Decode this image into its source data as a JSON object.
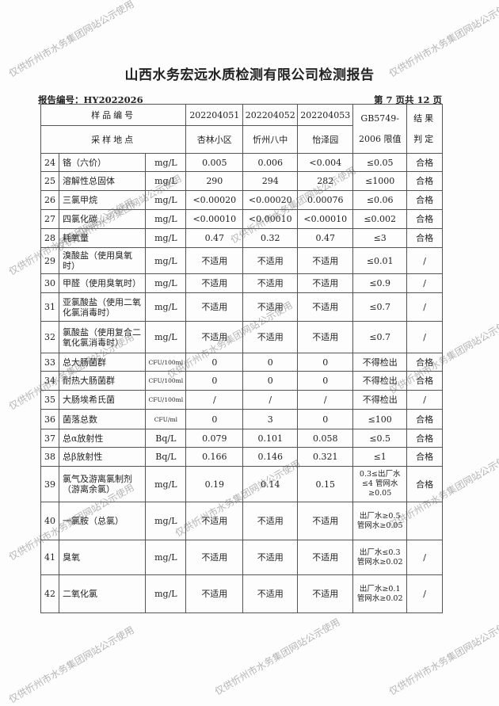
{
  "title": "山西水务宏远水质检测有限公司检测报告",
  "report_no": "报告编号：HY2022026",
  "page_info": "第 7 页共 12 页",
  "watermark": "仅供忻州市水务集团网站公示使用",
  "header": {
    "sample_id_label": "样品编号",
    "location_label": "采样地点",
    "samples": [
      "202204051",
      "202204052",
      "202204053"
    ],
    "locations": [
      "杏林小区",
      "忻州八中",
      "怡泽园"
    ],
    "limit_label": "GB5749-2006 限值",
    "result_label": "结果判定"
  },
  "rows": [
    {
      "no": "24",
      "name": "铬（六价）",
      "unit": "mg/L",
      "v": [
        "0.005",
        "0.006",
        "<0.004"
      ],
      "limit": "≤0.05",
      "result": "合格"
    },
    {
      "no": "25",
      "name": "溶解性总固体",
      "unit": "mg/L",
      "v": [
        "290",
        "294",
        "282"
      ],
      "limit": "≤1000",
      "result": "合格"
    },
    {
      "no": "26",
      "name": "三氯甲烷",
      "unit": "mg/L",
      "v": [
        "<0.00020",
        "<0.00020",
        "0.00076"
      ],
      "limit": "≤0.06",
      "result": "合格"
    },
    {
      "no": "27",
      "name": "四氯化碳",
      "unit": "mg/L",
      "v": [
        "<0.00010",
        "<0.00010",
        "<0.00010"
      ],
      "limit": "≤0.002",
      "result": "合格"
    },
    {
      "no": "28",
      "name": "耗氧量",
      "unit": "mg/L",
      "v": [
        "0.47",
        "0.32",
        "0.47"
      ],
      "limit": "≤3",
      "result": "合格"
    },
    {
      "no": "29",
      "name": "溴酸盐（使用臭氧时）",
      "unit": "mg/L",
      "v": [
        "不适用",
        "不适用",
        "不适用"
      ],
      "limit": "≤0.01",
      "result": "/"
    },
    {
      "no": "30",
      "name": "甲醛（使用臭氧时）",
      "unit": "mg/L",
      "v": [
        "不适用",
        "不适用",
        "不适用"
      ],
      "limit": "≤0.9",
      "result": "/"
    },
    {
      "no": "31",
      "name": "亚氯酸盐（使用二氧化氯消毒时）",
      "unit": "mg/L",
      "v": [
        "不适用",
        "不适用",
        "不适用"
      ],
      "limit": "≤0.7",
      "result": "/"
    },
    {
      "no": "32",
      "name": "氯酸盐（使用复合二氧化氯消毒时）",
      "unit": "mg/L",
      "v": [
        "不适用",
        "不适用",
        "不适用"
      ],
      "limit": "≤0.7",
      "result": "/"
    },
    {
      "no": "33",
      "name": "总大肠菌群",
      "unit": "CFU/100ml",
      "v": [
        "0",
        "0",
        "0"
      ],
      "limit": "不得检出",
      "result": "合格"
    },
    {
      "no": "34",
      "name": "耐热大肠菌群",
      "unit": "CFU/100ml",
      "v": [
        "0",
        "0",
        "0"
      ],
      "limit": "不得检出",
      "result": "合格"
    },
    {
      "no": "35",
      "name": "大肠埃希氏菌",
      "unit": "CFU/100ml",
      "v": [
        "/",
        "/",
        "/"
      ],
      "limit": "不得检出",
      "result": "/"
    },
    {
      "no": "36",
      "name": "菌落总数",
      "unit": "CFU/ml",
      "v": [
        "0",
        "3",
        "0"
      ],
      "limit": "≤100",
      "result": "合格"
    },
    {
      "no": "37",
      "name": "总α放射性",
      "unit": "Bq/L",
      "v": [
        "0.079",
        "0.101",
        "0.058"
      ],
      "limit": "≤0.5",
      "result": "合格"
    },
    {
      "no": "38",
      "name": "总β放射性",
      "unit": "Bq/L",
      "v": [
        "0.166",
        "0.146",
        "0.321"
      ],
      "limit": "≤1",
      "result": "合格"
    },
    {
      "no": "39",
      "name": "氯气及游离氯制剂（游离余氯）",
      "unit": "mg/L",
      "v": [
        "0.19",
        "0.14",
        "0.15"
      ],
      "limit": "0.3≤出厂水≤4 管网水≥0.05",
      "result": "合格"
    },
    {
      "no": "40",
      "name": "一氯胺（总氯）",
      "unit": "mg/L",
      "v": [
        "不适用",
        "不适用",
        "不适用"
      ],
      "limit": "出厂水≥0.5 管网水≥0.05",
      "result": ""
    },
    {
      "no": "41",
      "name": "臭氧",
      "unit": "mg/L",
      "v": [
        "不适用",
        "不适用",
        "不适用"
      ],
      "limit": "出厂水≤0.3 管网水≥0.02",
      "result": "/"
    },
    {
      "no": "42",
      "name": "二氧化氯",
      "unit": "mg/L",
      "v": [
        "不适用",
        "不适用",
        "不适用"
      ],
      "limit": "出厂水≥0.1 管网水≥0.02",
      "result": "/"
    }
  ]
}
